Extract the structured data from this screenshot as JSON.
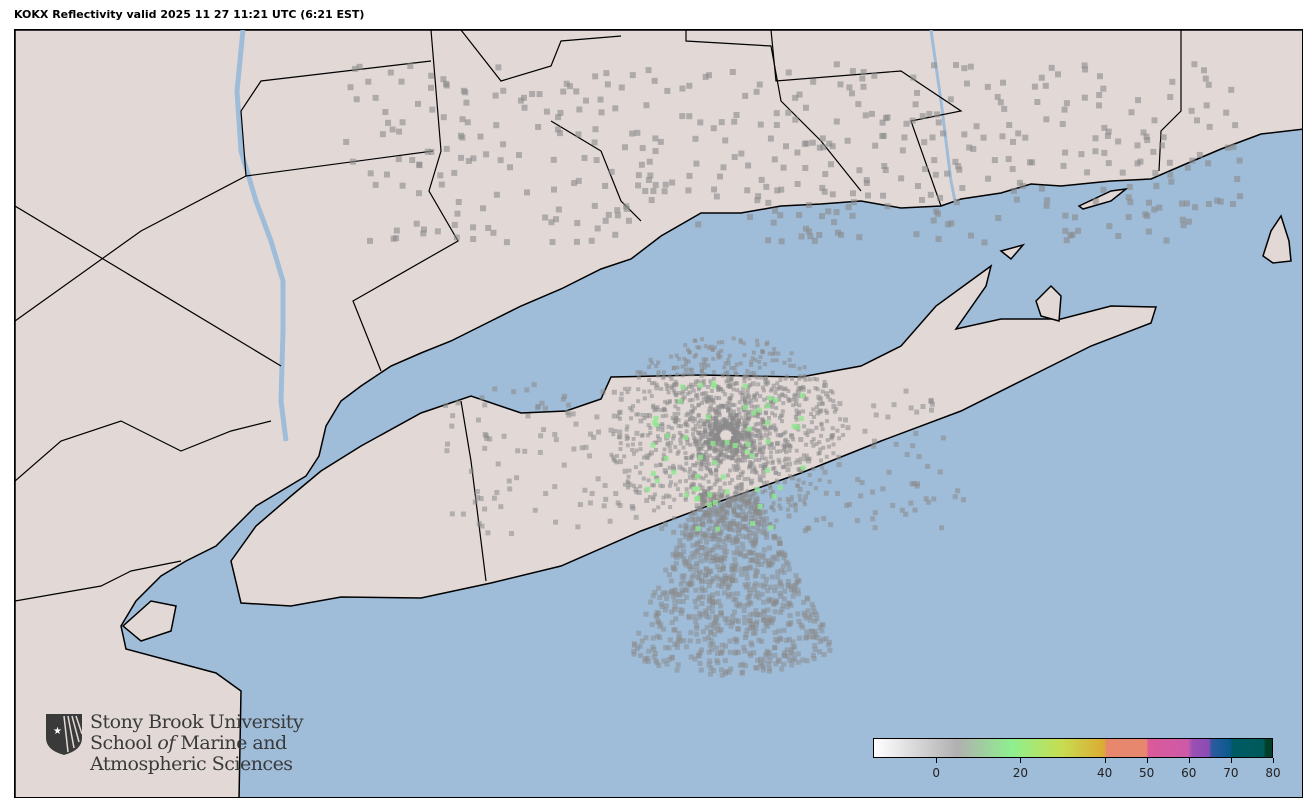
{
  "title": "KOKX Reflectivity valid 2025 11 27 11:21 UTC (6:21 EST)",
  "map": {
    "radar_site": "KOKX",
    "product": "Reflectivity",
    "colors": {
      "water": "#9fbcd8",
      "land": "#e2d9d7",
      "border": "#000000",
      "echo_gray": "#8a8a8a",
      "echo_green": "#8fe88f"
    }
  },
  "logo": {
    "line1": "Stony Brook University",
    "line2a": "School ",
    "line2b": "of",
    "line2c": " Marine and",
    "line3": "Atmospheric Sciences"
  },
  "colorbar": {
    "min": -15,
    "max": 80,
    "ticks": [
      0,
      20,
      40,
      50,
      60,
      70,
      80
    ],
    "tick_labels": [
      "0",
      "20",
      "40",
      "50",
      "60",
      "70",
      "80"
    ],
    "stops": [
      {
        "value": -15,
        "color": "#ffffff"
      },
      {
        "value": 5,
        "color": "#b0b0b0"
      },
      {
        "value": 18,
        "color": "#8ef08e"
      },
      {
        "value": 30,
        "color": "#c8dc50"
      },
      {
        "value": 40,
        "color": "#dcaa32"
      },
      {
        "value": 40.5,
        "color": "#e6876e"
      },
      {
        "value": 50,
        "color": "#e6876e"
      },
      {
        "value": 50.5,
        "color": "#dc5a9a"
      },
      {
        "value": 60,
        "color": "#cc5aa8"
      },
      {
        "value": 61,
        "color": "#9a50b4"
      },
      {
        "value": 65,
        "color": "#8a4cb4"
      },
      {
        "value": 65.5,
        "color": "#2e5aa0"
      },
      {
        "value": 70,
        "color": "#0a5a8c"
      },
      {
        "value": 70.5,
        "color": "#005a64"
      },
      {
        "value": 78,
        "color": "#005a5a"
      },
      {
        "value": 78.5,
        "color": "#00402a"
      },
      {
        "value": 80,
        "color": "#00402a"
      }
    ]
  }
}
